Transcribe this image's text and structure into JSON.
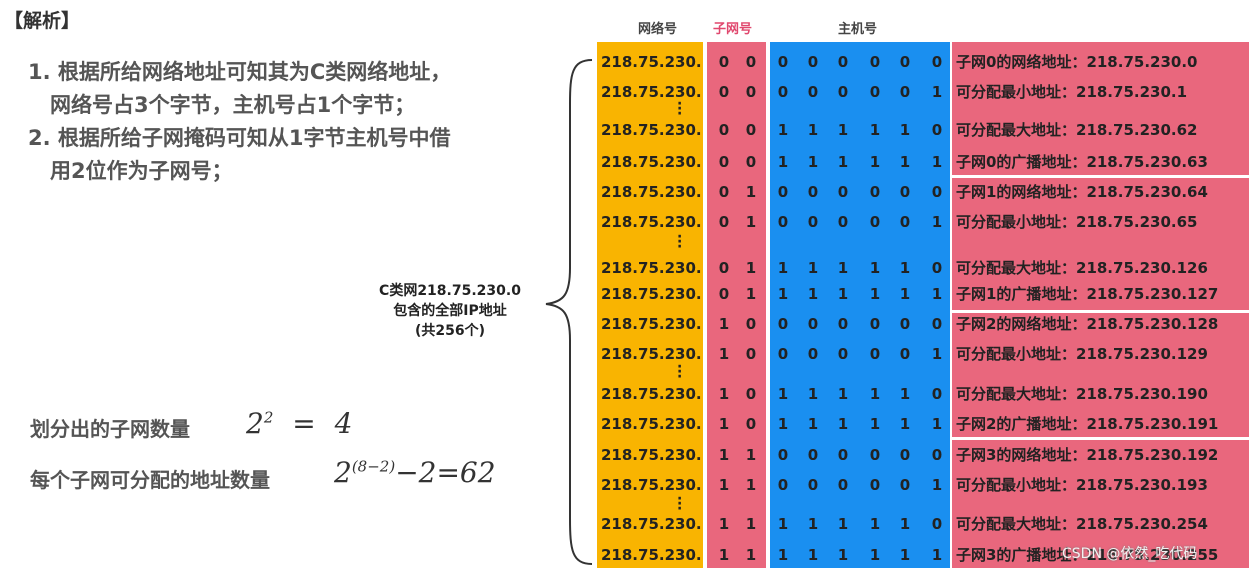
{
  "title": "【解析】",
  "points": [
    "1. 根据所给网络地址可知其为C类网络地址，",
    "网络号占3个字节，主机号占1个字节；",
    "2. 根据所给子网掩码可知从1字节主机号中借",
    "用2位作为子网号；"
  ],
  "formulas": {
    "subnet_count_label": "划分出的子网数量",
    "subnet_count_expr": [
      "2",
      "2",
      "=",
      "4"
    ],
    "hosts_label": "每个子网可分配的地址数量",
    "hosts_expr": [
      "2",
      "(8−2)",
      "−2=62"
    ]
  },
  "headers": {
    "network": "网络号",
    "subnet": "子网号",
    "host": "主机号"
  },
  "brace_label": [
    "C类网218.75.230.0",
    "包含的全部IP地址",
    "(共256个)"
  ],
  "rows": [
    {
      "net": "218.75.230.",
      "bits": [
        "0",
        "0",
        "0",
        "0",
        "0",
        "0",
        "0",
        "0"
      ],
      "desc": "子网0的网络地址：218.75.230.0"
    },
    {
      "net": "218.75.230.",
      "bits": [
        "0",
        "0",
        "0",
        "0",
        "0",
        "0",
        "0",
        "1"
      ],
      "desc": "可分配最小地址：218.75.230.1"
    },
    {
      "net": "218.75.230.",
      "bits": [
        "0",
        "0",
        "1",
        "1",
        "1",
        "1",
        "1",
        "0"
      ],
      "desc": "可分配最大地址：218.75.230.62"
    },
    {
      "net": "218.75.230.",
      "bits": [
        "0",
        "0",
        "1",
        "1",
        "1",
        "1",
        "1",
        "1"
      ],
      "desc": "子网0的广播地址：218.75.230.63"
    },
    {
      "net": "218.75.230.",
      "bits": [
        "0",
        "1",
        "0",
        "0",
        "0",
        "0",
        "0",
        "0"
      ],
      "desc": "子网1的网络地址：218.75.230.64"
    },
    {
      "net": "218.75.230.",
      "bits": [
        "0",
        "1",
        "0",
        "0",
        "0",
        "0",
        "0",
        "1"
      ],
      "desc": "可分配最小地址：218.75.230.65"
    },
    {
      "net": "218.75.230.",
      "bits": [
        "0",
        "1",
        "1",
        "1",
        "1",
        "1",
        "1",
        "0"
      ],
      "desc": "可分配最大地址：218.75.230.126"
    },
    {
      "net": "218.75.230.",
      "bits": [
        "0",
        "1",
        "1",
        "1",
        "1",
        "1",
        "1",
        "1"
      ],
      "desc": "子网1的广播地址：218.75.230.127"
    },
    {
      "net": "218.75.230.",
      "bits": [
        "1",
        "0",
        "0",
        "0",
        "0",
        "0",
        "0",
        "0"
      ],
      "desc": "子网2的网络地址：218.75.230.128"
    },
    {
      "net": "218.75.230.",
      "bits": [
        "1",
        "0",
        "0",
        "0",
        "0",
        "0",
        "0",
        "1"
      ],
      "desc": "可分配最小地址：218.75.230.129"
    },
    {
      "net": "218.75.230.",
      "bits": [
        "1",
        "0",
        "1",
        "1",
        "1",
        "1",
        "1",
        "0"
      ],
      "desc": "可分配最大地址：218.75.230.190"
    },
    {
      "net": "218.75.230.",
      "bits": [
        "1",
        "0",
        "1",
        "1",
        "1",
        "1",
        "1",
        "1"
      ],
      "desc": "子网2的广播地址：218.75.230.191"
    },
    {
      "net": "218.75.230.",
      "bits": [
        "1",
        "1",
        "0",
        "0",
        "0",
        "0",
        "0",
        "0"
      ],
      "desc": "子网3的网络地址：218.75.230.192"
    },
    {
      "net": "218.75.230.",
      "bits": [
        "1",
        "1",
        "0",
        "0",
        "0",
        "0",
        "0",
        "1"
      ],
      "desc": "可分配最小地址：218.75.230.193"
    },
    {
      "net": "218.75.230.",
      "bits": [
        "1",
        "1",
        "1",
        "1",
        "1",
        "1",
        "1",
        "0"
      ],
      "desc": "可分配最大地址：218.75.230.254"
    },
    {
      "net": "218.75.230.",
      "bits": [
        "1",
        "1",
        "1",
        "1",
        "1",
        "1",
        "1",
        "1"
      ],
      "desc": "子网3的广播地址：218.75.230.255"
    }
  ],
  "watermark": "CSDN @依然_吃代码",
  "colors": {
    "network_col": "#f9b401",
    "subnet_col": "#e9677d",
    "host_col": "#1a8ff0",
    "desc_col": "#e9677d"
  }
}
